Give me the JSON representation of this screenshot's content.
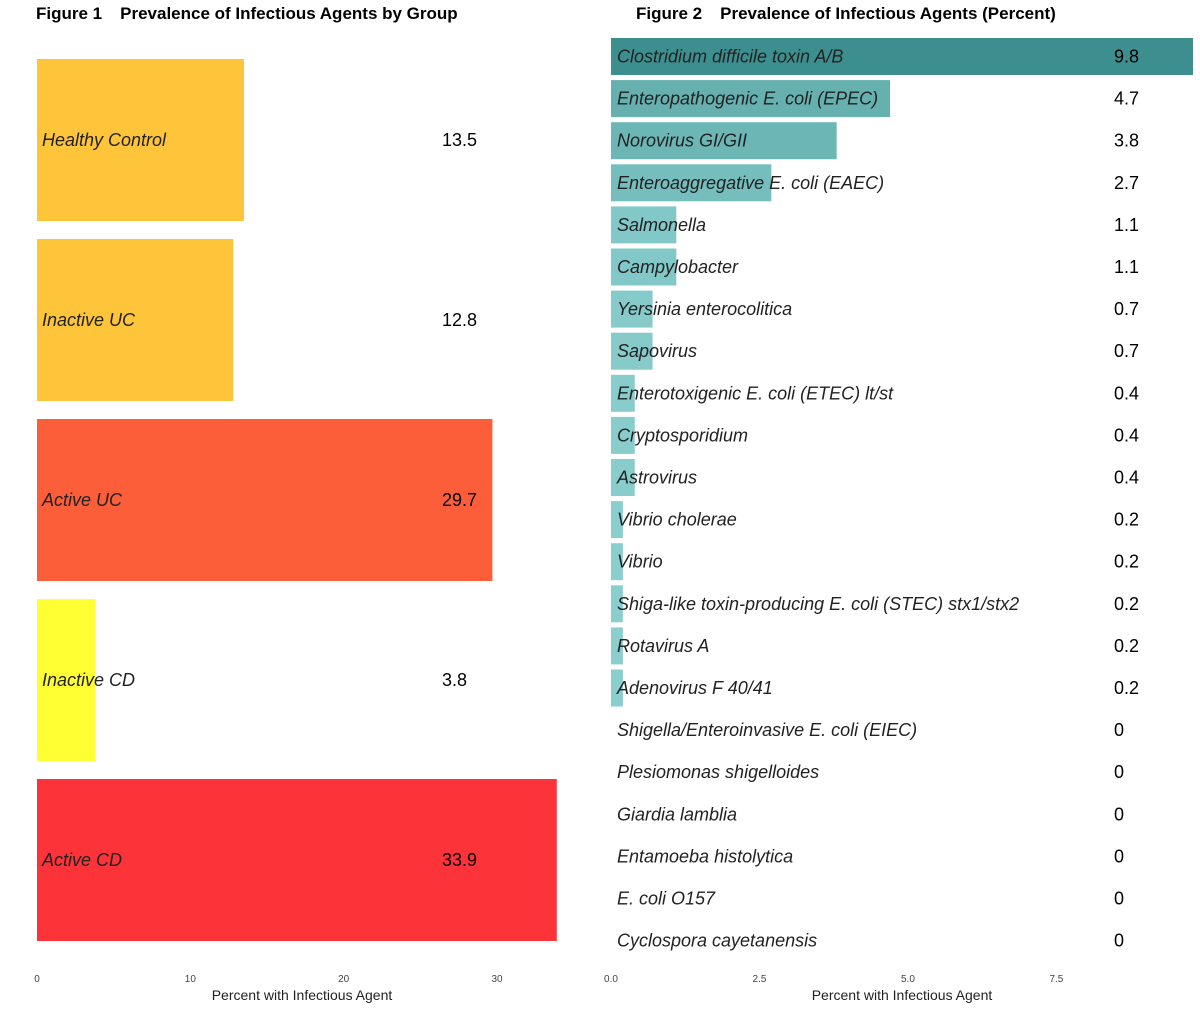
{
  "chart_data": [
    {
      "type": "bar",
      "orientation": "horizontal",
      "figure_label": "Figure 1",
      "title": "Prevalence of Infectious Agents by Group",
      "xlabel": "Percent with Infectious Agent",
      "ylabel": "",
      "xlim": [
        0,
        34.5
      ],
      "xticks": [
        "0",
        "10",
        "20",
        "30"
      ],
      "grid": false,
      "categories": [
        "Healthy Control",
        "Inactive UC",
        "Active UC",
        "Inactive CD",
        "Active CD"
      ],
      "values": [
        13.5,
        12.8,
        29.7,
        3.8,
        33.9
      ],
      "value_labels": [
        "13.5",
        "12.8",
        "29.7",
        "3.8",
        "33.9"
      ],
      "colors": [
        "#FEC43A",
        "#FEC43A",
        "#FC5E3A",
        "#FFFF33",
        "#FC3339"
      ]
    },
    {
      "type": "bar",
      "orientation": "horizontal",
      "figure_label": "Figure 2",
      "title": "Prevalence of Infectious Agents (Percent)",
      "xlabel": "Percent with Infectious Agent",
      "ylabel": "",
      "xlim": [
        0,
        9.8
      ],
      "xticks": [
        "0.0",
        "2.5",
        "5.0",
        "7.5"
      ],
      "grid": false,
      "categories": [
        "Clostridium difficile toxin A/B",
        "Enteropathogenic E. coli (EPEC)",
        "Norovirus GI/GII",
        "Enteroaggregative E. coli (EAEC)",
        "Salmonella",
        "Campylobacter",
        "Yersinia enterocolitica",
        "Sapovirus",
        "Enterotoxigenic E. coli (ETEC) lt/st",
        "Cryptosporidium",
        "Astrovirus",
        "Vibrio cholerae",
        "Vibrio",
        "Shiga-like toxin-producing E. coli (STEC) stx1/stx2",
        "Rotavirus A",
        "Adenovirus F 40/41",
        "Shigella/Enteroinvasive E. coli (EIEC)",
        "Plesiomonas shigelloides",
        "Giardia lamblia",
        "Entamoeba histolytica",
        "E. coli O157",
        "Cyclospora cayetanensis"
      ],
      "values": [
        9.8,
        4.7,
        3.8,
        2.7,
        1.1,
        1.1,
        0.7,
        0.7,
        0.4,
        0.4,
        0.4,
        0.2,
        0.2,
        0.2,
        0.2,
        0.2,
        0,
        0,
        0,
        0,
        0,
        0
      ],
      "value_labels": [
        "9.8",
        "4.7",
        "3.8",
        "2.7",
        "1.1",
        "1.1",
        "0.7",
        "0.7",
        "0.4",
        "0.4",
        "0.4",
        "0.2",
        "0.2",
        "0.2",
        "0.2",
        "0.2",
        "0",
        "0",
        "0",
        "0",
        "0",
        "0"
      ],
      "color_scale": {
        "low": "#8CCFCF",
        "high": "#3D8F8F"
      }
    }
  ]
}
